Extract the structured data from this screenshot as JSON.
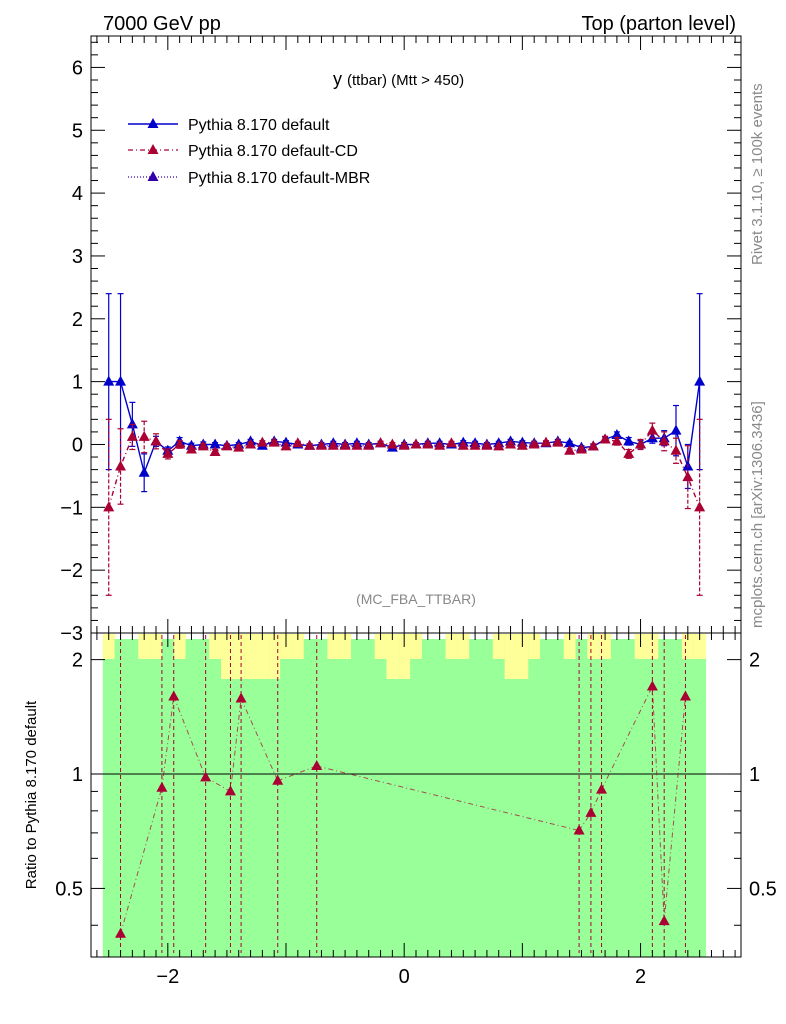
{
  "header": {
    "left": "7000 GeV pp",
    "right": "Top (parton level)"
  },
  "side_text": {
    "rivet": "Rivet 3.1.10, ≥ 100k events",
    "mcplots": "mcplots.cern.ch [arXiv:1306.3436]"
  },
  "plot_title": {
    "main": "y",
    "sub": "(ttbar) (Mtt > 450)"
  },
  "watermark": "(MC_FBA_TTBAR)",
  "ratio_ylabel": "Ratio to Pythia 8.170 default",
  "legend": [
    {
      "label": "Pythia 8.170 default",
      "color": "#0000cc",
      "style": "solid"
    },
    {
      "label": "Pythia 8.170 default-CD",
      "color": "#aa0033",
      "style": "dashdot"
    },
    {
      "label": "Pythia 8.170 default-MBR",
      "color": "#3300aa",
      "style": "dotted"
    }
  ],
  "chart_data": [
    {
      "type": "line",
      "title": "y (ttbar) (Mtt > 450)",
      "xlim": [
        -2.65,
        2.85
      ],
      "ylim": [
        -3,
        6.5
      ],
      "yticks": [
        -3,
        -2,
        -1,
        0,
        1,
        2,
        3,
        4,
        5,
        6
      ],
      "xticks": [
        -2,
        0,
        2
      ],
      "series": [
        {
          "name": "Pythia 8.170 default",
          "color": "#0000cc",
          "points": [
            [
              -2.5,
              1.0,
              1.4
            ],
            [
              -2.4,
              1.0,
              1.4
            ],
            [
              -2.3,
              0.32,
              0.35
            ],
            [
              -2.2,
              -0.45,
              0.3
            ],
            [
              -2.1,
              0.05,
              0.08
            ],
            [
              -2.0,
              -0.1,
              0.06
            ],
            [
              -1.9,
              0.05,
              0.06
            ],
            [
              -1.8,
              -0.02,
              0.04
            ],
            [
              -1.7,
              0.0,
              0.04
            ],
            [
              -1.6,
              0.0,
              0.03
            ],
            [
              -1.5,
              -0.02,
              0.03
            ],
            [
              -1.4,
              0.0,
              0.03
            ],
            [
              -1.3,
              0.05,
              0.03
            ],
            [
              -1.2,
              -0.02,
              0.03
            ],
            [
              -1.1,
              0.05,
              0.03
            ],
            [
              -1.0,
              0.03,
              0.03
            ],
            [
              -0.9,
              0.0,
              0.03
            ],
            [
              -0.8,
              -0.02,
              0.03
            ],
            [
              -0.7,
              0.0,
              0.03
            ],
            [
              -0.6,
              0.02,
              0.03
            ],
            [
              -0.5,
              0.0,
              0.03
            ],
            [
              -0.4,
              0.02,
              0.03
            ],
            [
              -0.3,
              0.0,
              0.03
            ],
            [
              -0.2,
              0.02,
              0.03
            ],
            [
              -0.1,
              -0.05,
              0.03
            ],
            [
              0.0,
              0.0,
              0.03
            ],
            [
              0.1,
              0.0,
              0.03
            ],
            [
              0.2,
              0.02,
              0.03
            ],
            [
              0.3,
              0.02,
              0.03
            ],
            [
              0.4,
              0.0,
              0.03
            ],
            [
              0.5,
              0.03,
              0.03
            ],
            [
              0.6,
              0.02,
              0.03
            ],
            [
              0.7,
              0.0,
              0.03
            ],
            [
              0.8,
              0.02,
              0.03
            ],
            [
              0.9,
              0.05,
              0.03
            ],
            [
              1.0,
              0.03,
              0.03
            ],
            [
              1.1,
              0.02,
              0.03
            ],
            [
              1.2,
              0.02,
              0.03
            ],
            [
              1.3,
              0.05,
              0.03
            ],
            [
              1.4,
              0.02,
              0.03
            ],
            [
              1.5,
              -0.05,
              0.03
            ],
            [
              1.6,
              -0.03,
              0.03
            ],
            [
              1.7,
              0.08,
              0.04
            ],
            [
              1.8,
              0.15,
              0.05
            ],
            [
              1.9,
              0.05,
              0.06
            ],
            [
              2.0,
              0.0,
              0.06
            ],
            [
              2.1,
              0.1,
              0.08
            ],
            [
              2.2,
              0.1,
              0.12
            ],
            [
              2.3,
              0.22,
              0.4
            ],
            [
              2.4,
              -0.35,
              0.35
            ],
            [
              2.5,
              1.0,
              1.4
            ]
          ]
        },
        {
          "name": "Pythia 8.170 default-CD",
          "color": "#aa0033",
          "points": [
            [
              -2.5,
              -1.0,
              1.4
            ],
            [
              -2.4,
              -0.35,
              0.6
            ],
            [
              -2.3,
              0.12,
              0.2
            ],
            [
              -2.2,
              0.12,
              0.25
            ],
            [
              -2.1,
              0.05,
              0.12
            ],
            [
              -2.0,
              -0.15,
              0.08
            ],
            [
              -1.9,
              0.0,
              0.06
            ],
            [
              -1.8,
              -0.08,
              0.05
            ],
            [
              -1.7,
              -0.03,
              0.04
            ],
            [
              -1.6,
              -0.12,
              0.04
            ],
            [
              -1.5,
              -0.03,
              0.03
            ],
            [
              -1.4,
              -0.05,
              0.03
            ],
            [
              -1.3,
              0.0,
              0.03
            ],
            [
              -1.2,
              0.03,
              0.03
            ],
            [
              -1.1,
              0.03,
              0.03
            ],
            [
              -1.0,
              -0.03,
              0.03
            ],
            [
              -0.9,
              0.02,
              0.03
            ],
            [
              -0.8,
              -0.02,
              0.03
            ],
            [
              -0.7,
              -0.02,
              0.03
            ],
            [
              -0.6,
              -0.02,
              0.03
            ],
            [
              -0.5,
              -0.02,
              0.03
            ],
            [
              -0.4,
              -0.02,
              0.03
            ],
            [
              -0.3,
              -0.02,
              0.03
            ],
            [
              -0.2,
              0.02,
              0.03
            ],
            [
              -0.1,
              0.0,
              0.03
            ],
            [
              0.0,
              -0.02,
              0.03
            ],
            [
              0.1,
              0.0,
              0.03
            ],
            [
              0.2,
              0.0,
              0.03
            ],
            [
              0.3,
              -0.02,
              0.03
            ],
            [
              0.4,
              0.02,
              0.03
            ],
            [
              0.5,
              -0.02,
              0.03
            ],
            [
              0.6,
              -0.02,
              0.03
            ],
            [
              0.7,
              -0.02,
              0.03
            ],
            [
              0.8,
              -0.03,
              0.03
            ],
            [
              0.9,
              0.0,
              0.03
            ],
            [
              1.0,
              -0.02,
              0.03
            ],
            [
              1.1,
              0.0,
              0.03
            ],
            [
              1.2,
              0.03,
              0.03
            ],
            [
              1.3,
              0.03,
              0.03
            ],
            [
              1.4,
              -0.1,
              0.03
            ],
            [
              1.5,
              -0.08,
              0.04
            ],
            [
              1.6,
              -0.03,
              0.04
            ],
            [
              1.7,
              0.08,
              0.05
            ],
            [
              1.8,
              0.05,
              0.06
            ],
            [
              1.9,
              -0.15,
              0.07
            ],
            [
              2.0,
              0.0,
              0.08
            ],
            [
              2.1,
              0.22,
              0.12
            ],
            [
              2.2,
              0.05,
              0.15
            ],
            [
              2.3,
              -0.1,
              0.2
            ],
            [
              2.4,
              -0.52,
              0.5
            ],
            [
              2.5,
              -1.0,
              1.4
            ]
          ]
        }
      ]
    },
    {
      "type": "line",
      "ylabel": "Ratio to Pythia 8.170 default",
      "xlim": [
        -2.65,
        2.85
      ],
      "ylim": [
        0.33,
        2.35
      ],
      "yticks": [
        0.5,
        1,
        2
      ],
      "reference_line": 1,
      "series": [
        {
          "name": "Pythia 8.170 default-CD",
          "color": "#aa0033",
          "points": [
            [
              -2.4,
              0.38
            ],
            [
              -2.05,
              0.92
            ],
            [
              -1.95,
              1.6
            ],
            [
              -1.68,
              0.98
            ],
            [
              -1.47,
              0.9
            ],
            [
              -1.38,
              1.58
            ],
            [
              -1.07,
              0.96
            ],
            [
              -0.74,
              1.05
            ],
            [
              1.48,
              0.71
            ],
            [
              1.58,
              0.79
            ],
            [
              1.67,
              0.91
            ],
            [
              2.1,
              1.7
            ],
            [
              2.2,
              0.41
            ],
            [
              2.38,
              1.6
            ]
          ]
        }
      ]
    }
  ]
}
